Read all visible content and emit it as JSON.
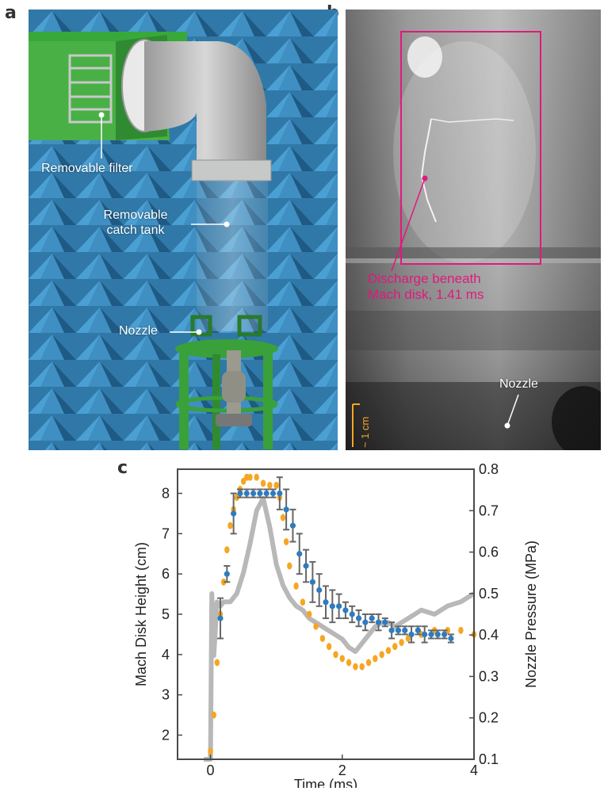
{
  "panel_letters": {
    "a": "a",
    "b": "b",
    "c": "c"
  },
  "panel_a": {
    "labels": {
      "filter": "Removable filter",
      "tank_line1": "Removable",
      "tank_line2": "catch tank",
      "nozzle": "Nozzle"
    }
  },
  "panel_b": {
    "discharge_line1": "Discharge beneath",
    "discharge_line2": "Mach disk, 1.41 ms",
    "nozzle": "Nozzle",
    "scale": "~ 1 cm",
    "colors": {
      "box": "#e0197d",
      "scale": "#f5a623"
    }
  },
  "chart_data": {
    "type": "line",
    "xlabel": "Time (ms)",
    "ylabel": "Mach Disk Height (cm)",
    "y2label": "Nozzle Pressure (MPa)",
    "xlim": [
      -0.5,
      4
    ],
    "ylim": [
      1.4,
      8.6
    ],
    "y2lim": [
      0.1,
      0.8
    ],
    "xticks": [
      "0",
      "2",
      "4"
    ],
    "yticks": [
      "2",
      "3",
      "4",
      "5",
      "6",
      "7",
      "8"
    ],
    "y2ticks": [
      "0.1",
      "0.2",
      "0.3",
      "0.4",
      "0.5",
      "0.6",
      "0.7",
      "0.8"
    ],
    "series": [
      {
        "axis": "left",
        "color": "#2e7bbf",
        "style": "points with error bars",
        "x": [
          0.15,
          0.25,
          0.35,
          0.45,
          0.55,
          0.65,
          0.75,
          0.85,
          0.95,
          1.05,
          1.15,
          1.25,
          1.35,
          1.45,
          1.55,
          1.65,
          1.75,
          1.85,
          1.95,
          2.05,
          2.15,
          2.25,
          2.35,
          2.45,
          2.55,
          2.65,
          2.75,
          2.85,
          2.95,
          3.05,
          3.15,
          3.25,
          3.35,
          3.45,
          3.55,
          3.65
        ],
        "y": [
          4.9,
          6.0,
          7.5,
          8.0,
          8.0,
          8.0,
          8.0,
          8.0,
          8.0,
          8.0,
          7.6,
          7.2,
          6.5,
          6.2,
          5.8,
          5.6,
          5.3,
          5.2,
          5.2,
          5.1,
          5.0,
          4.9,
          4.8,
          4.9,
          4.8,
          4.8,
          4.6,
          4.6,
          4.6,
          4.5,
          4.6,
          4.5,
          4.5,
          4.5,
          4.5,
          4.4
        ],
        "err": [
          0.5,
          0.2,
          0.5,
          0.1,
          0.1,
          0.1,
          0.1,
          0.1,
          0.1,
          0.4,
          0.5,
          0.4,
          0.5,
          0.4,
          0.5,
          0.4,
          0.4,
          0.4,
          0.3,
          0.2,
          0.2,
          0.2,
          0.2,
          0.1,
          0.2,
          0.1,
          0.2,
          0.1,
          0.1,
          0.2,
          0.1,
          0.2,
          0.1,
          0.1,
          0.1,
          0.1
        ]
      },
      {
        "axis": "left",
        "color": "#f5a623",
        "style": "dots",
        "x": [
          0.0,
          0.05,
          0.1,
          0.15,
          0.2,
          0.25,
          0.3,
          0.35,
          0.4,
          0.45,
          0.5,
          0.55,
          0.6,
          0.7,
          0.8,
          0.9,
          1.0,
          1.05,
          1.1,
          1.15,
          1.2,
          1.3,
          1.4,
          1.5,
          1.6,
          1.7,
          1.8,
          1.9,
          2.0,
          2.1,
          2.2,
          2.3,
          2.4,
          2.5,
          2.6,
          2.7,
          2.8,
          2.9,
          3.0,
          3.2,
          3.4,
          3.6,
          3.8,
          4.0
        ],
        "y": [
          1.6,
          2.5,
          3.8,
          5.0,
          5.8,
          6.6,
          7.2,
          7.6,
          7.9,
          8.1,
          8.3,
          8.4,
          8.4,
          8.4,
          8.25,
          8.2,
          8.2,
          7.9,
          7.4,
          6.8,
          6.2,
          5.7,
          5.3,
          5.0,
          4.7,
          4.4,
          4.2,
          4.0,
          3.9,
          3.8,
          3.7,
          3.7,
          3.8,
          3.9,
          4.0,
          4.1,
          4.2,
          4.3,
          4.4,
          4.5,
          4.6,
          4.6,
          4.6,
          4.5
        ]
      },
      {
        "axis": "right",
        "color": "#b8b8b8",
        "style": "thick line",
        "x": [
          -0.1,
          0.0,
          0.02,
          0.05,
          0.1,
          0.15,
          0.2,
          0.3,
          0.4,
          0.5,
          0.6,
          0.7,
          0.8,
          0.9,
          1.0,
          1.1,
          1.2,
          1.3,
          1.4,
          1.5,
          1.6,
          1.7,
          1.8,
          1.9,
          2.0,
          2.1,
          2.2,
          2.3,
          2.4,
          2.5,
          2.6,
          2.7,
          2.8,
          2.9,
          3.0,
          3.2,
          3.4,
          3.6,
          3.8,
          4.0
        ],
        "y": [
          0.1,
          0.1,
          0.5,
          0.35,
          0.48,
          0.47,
          0.48,
          0.48,
          0.5,
          0.55,
          0.62,
          0.7,
          0.73,
          0.66,
          0.57,
          0.52,
          0.49,
          0.47,
          0.46,
          0.44,
          0.43,
          0.42,
          0.41,
          0.4,
          0.39,
          0.37,
          0.36,
          0.38,
          0.4,
          0.42,
          0.43,
          0.43,
          0.42,
          0.43,
          0.44,
          0.46,
          0.45,
          0.47,
          0.48,
          0.5
        ]
      }
    ]
  }
}
